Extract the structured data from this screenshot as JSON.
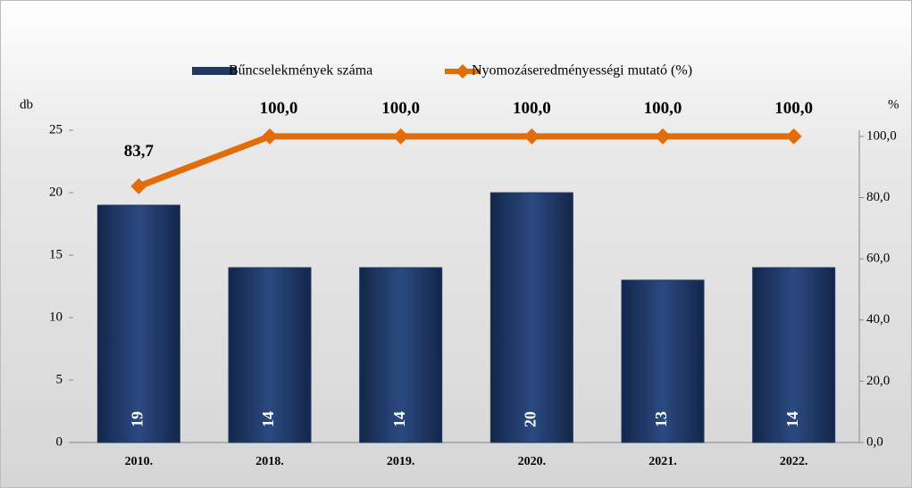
{
  "chart_data": {
    "type": "bar_line",
    "categories": [
      "2010.",
      "2018.",
      "2019.",
      "2020.",
      "2021.",
      "2022."
    ],
    "y_label": "db",
    "y2_label": "%",
    "series": [
      {
        "name": "Bűncselekmények száma",
        "type": "bar",
        "color": "#1f3864",
        "values": [
          19,
          14,
          14,
          20,
          13,
          14
        ]
      },
      {
        "name": "Nyomozáseredményességi mutató (%)",
        "type": "line",
        "axis": "y2",
        "color": "#e36c0a",
        "values": [
          83.7,
          100,
          100,
          100,
          100,
          100
        ],
        "value_labels": [
          "83,7",
          "100,0",
          "100,0",
          "100,0",
          "100,0",
          "100,0"
        ]
      }
    ],
    "ylim": [
      0,
      25
    ],
    "yticks": [
      0,
      5,
      10,
      15,
      20,
      25
    ],
    "y2lim": [
      0,
      102
    ],
    "y2ticks": [
      {
        "value": 0,
        "label": "0,0"
      },
      {
        "value": 20,
        "label": "20,0"
      },
      {
        "value": 40,
        "label": "40,0"
      },
      {
        "value": 60,
        "label": "60,0"
      },
      {
        "value": 80,
        "label": "80,0"
      },
      {
        "value": 100,
        "label": "100,0"
      }
    ]
  }
}
